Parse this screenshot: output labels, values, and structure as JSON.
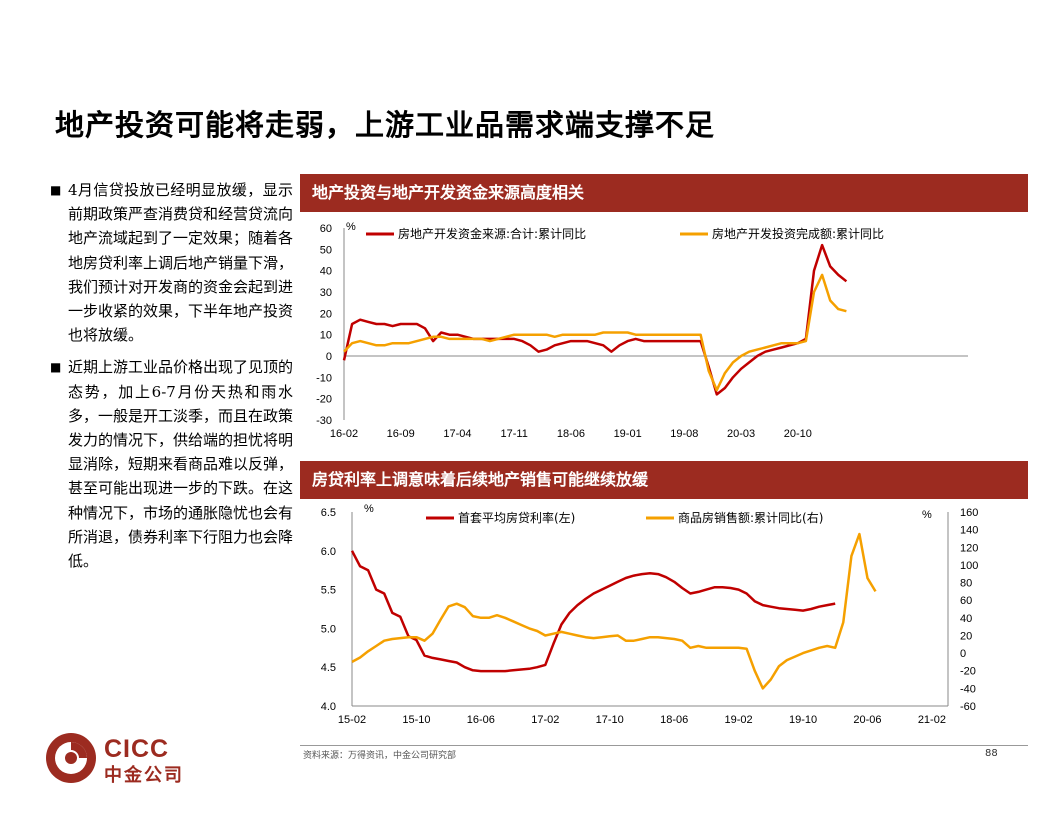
{
  "page": {
    "title": "地产投资可能将走弱，上游工业品需求端支撑不足",
    "bullets": [
      "4月信贷投放已经明显放缓，显示前期政策严查消费贷和经营贷流向地产流域起到了一定效果；随着各地房贷利率上调后地产销量下滑，我们预计对开发商的资金会起到进一步收紧的效果，下半年地产投资也将放缓。",
      "近期上游工业品价格出现了见顶的态势，加上6-7月份天热和雨水多，一般是开工淡季，而且在政策发力的情况下，供给端的担忧将明显消除，短期来看商品难以反弹，甚至可能出现进一步的下跌。在这种情况下，市场的通胀隐忧也会有所消退，债券利率下行阻力也会降低。"
    ],
    "bullet_mark": "■",
    "source": "资料来源：万得资讯，中金公司研究部",
    "page_number": "88",
    "logo": {
      "en": "CICC",
      "cn": "中金公司"
    },
    "colors": {
      "brand": "#9c2b20",
      "series_red": "#c00000",
      "series_orange": "#f5a000"
    }
  },
  "chart_data": [
    {
      "type": "line",
      "title": "地产投资与地产开发资金来源高度相关",
      "ylabel": "%",
      "ylim": [
        -30,
        60
      ],
      "yticks": [
        60,
        50,
        40,
        30,
        20,
        10,
        0,
        -10,
        -20,
        -30
      ],
      "xlim": [
        0,
        77
      ],
      "xticks": [
        {
          "x": 0,
          "label": "16-02"
        },
        {
          "x": 7,
          "label": "16-09"
        },
        {
          "x": 14,
          "label": "17-04"
        },
        {
          "x": 21,
          "label": "17-11"
        },
        {
          "x": 28,
          "label": "18-06"
        },
        {
          "x": 35,
          "label": "19-01"
        },
        {
          "x": 42,
          "label": "19-08"
        },
        {
          "x": 49,
          "label": "20-03"
        },
        {
          "x": 56,
          "label": "20-10"
        }
      ],
      "series": [
        {
          "name": "房地产开发资金来源:合计:累计同比",
          "color": "#c00000",
          "points": [
            [
              0,
              -2
            ],
            [
              1,
              15
            ],
            [
              2,
              17
            ],
            [
              3,
              16
            ],
            [
              4,
              15
            ],
            [
              5,
              15
            ],
            [
              6,
              14
            ],
            [
              7,
              15
            ],
            [
              8,
              15
            ],
            [
              9,
              15
            ],
            [
              10,
              13
            ],
            [
              11,
              7
            ],
            [
              12,
              11
            ],
            [
              13,
              10
            ],
            [
              14,
              10
            ],
            [
              15,
              9
            ],
            [
              16,
              8
            ],
            [
              17,
              8
            ],
            [
              18,
              8
            ],
            [
              19,
              8
            ],
            [
              20,
              8
            ],
            [
              21,
              8
            ],
            [
              22,
              7
            ],
            [
              23,
              5
            ],
            [
              24,
              2
            ],
            [
              25,
              3
            ],
            [
              26,
              5
            ],
            [
              27,
              6
            ],
            [
              28,
              7
            ],
            [
              29,
              7
            ],
            [
              30,
              7
            ],
            [
              31,
              6
            ],
            [
              32,
              5
            ],
            [
              33,
              2
            ],
            [
              34,
              5
            ],
            [
              35,
              7
            ],
            [
              36,
              8
            ],
            [
              37,
              7
            ],
            [
              38,
              7
            ],
            [
              39,
              7
            ],
            [
              40,
              7
            ],
            [
              41,
              7
            ],
            [
              42,
              7
            ],
            [
              43,
              7
            ],
            [
              44,
              7
            ],
            [
              45,
              -5
            ],
            [
              46,
              -18
            ],
            [
              47,
              -15
            ],
            [
              48,
              -10
            ],
            [
              49,
              -6
            ],
            [
              50,
              -3
            ],
            [
              51,
              0
            ],
            [
              52,
              2
            ],
            [
              53,
              3
            ],
            [
              54,
              4
            ],
            [
              55,
              5
            ],
            [
              56,
              6
            ],
            [
              57,
              8
            ],
            [
              58,
              40
            ],
            [
              59,
              52
            ],
            [
              60,
              42
            ],
            [
              61,
              38
            ],
            [
              62,
              35
            ]
          ]
        },
        {
          "name": "房地产开发投资完成额:累计同比",
          "color": "#f5a000",
          "points": [
            [
              0,
              2
            ],
            [
              1,
              6
            ],
            [
              2,
              7
            ],
            [
              3,
              6
            ],
            [
              4,
              5
            ],
            [
              5,
              5
            ],
            [
              6,
              6
            ],
            [
              7,
              6
            ],
            [
              8,
              6
            ],
            [
              9,
              7
            ],
            [
              10,
              8
            ],
            [
              11,
              9
            ],
            [
              12,
              9
            ],
            [
              13,
              8
            ],
            [
              14,
              8
            ],
            [
              15,
              8
            ],
            [
              16,
              8
            ],
            [
              17,
              8
            ],
            [
              18,
              7
            ],
            [
              19,
              8
            ],
            [
              20,
              9
            ],
            [
              21,
              10
            ],
            [
              22,
              10
            ],
            [
              23,
              10
            ],
            [
              24,
              10
            ],
            [
              25,
              10
            ],
            [
              26,
              9
            ],
            [
              27,
              10
            ],
            [
              28,
              10
            ],
            [
              29,
              10
            ],
            [
              30,
              10
            ],
            [
              31,
              10
            ],
            [
              32,
              11
            ],
            [
              33,
              11
            ],
            [
              34,
              11
            ],
            [
              35,
              11
            ],
            [
              36,
              10
            ],
            [
              37,
              10
            ],
            [
              38,
              10
            ],
            [
              39,
              10
            ],
            [
              40,
              10
            ],
            [
              41,
              10
            ],
            [
              42,
              10
            ],
            [
              43,
              10
            ],
            [
              44,
              10
            ],
            [
              45,
              -7
            ],
            [
              46,
              -16
            ],
            [
              47,
              -8
            ],
            [
              48,
              -3
            ],
            [
              49,
              0
            ],
            [
              50,
              2
            ],
            [
              51,
              3
            ],
            [
              52,
              4
            ],
            [
              53,
              5
            ],
            [
              54,
              6
            ],
            [
              55,
              6
            ],
            [
              56,
              6
            ],
            [
              57,
              7
            ],
            [
              58,
              30
            ],
            [
              59,
              38
            ],
            [
              60,
              26
            ],
            [
              61,
              22
            ],
            [
              62,
              21
            ]
          ]
        }
      ]
    },
    {
      "type": "line",
      "title": "房贷利率上调意味着后续地产销售可能继续放缓",
      "ylabel_left": "%",
      "ylabel_right": "%",
      "ylim_left": [
        4.0,
        6.5
      ],
      "ylim_right": [
        -60,
        160
      ],
      "yticks_left": [
        6.5,
        6.0,
        5.5,
        5.0,
        4.5,
        4.0
      ],
      "yticks_right": [
        160,
        140,
        120,
        100,
        80,
        60,
        40,
        20,
        0,
        -20,
        -40,
        -60
      ],
      "xlim": [
        0,
        74
      ],
      "xticks": [
        {
          "x": 0,
          "label": "15-02"
        },
        {
          "x": 8,
          "label": "15-10"
        },
        {
          "x": 16,
          "label": "16-06"
        },
        {
          "x": 24,
          "label": "17-02"
        },
        {
          "x": 32,
          "label": "17-10"
        },
        {
          "x": 40,
          "label": "18-06"
        },
        {
          "x": 48,
          "label": "19-02"
        },
        {
          "x": 56,
          "label": "19-10"
        },
        {
          "x": 64,
          "label": "20-06"
        },
        {
          "x": 72,
          "label": "21-02"
        }
      ],
      "series": [
        {
          "name": "首套平均房贷利率(左)",
          "axis": "left",
          "color": "#c00000",
          "points": [
            [
              0,
              6.0
            ],
            [
              1,
              5.8
            ],
            [
              2,
              5.75
            ],
            [
              3,
              5.5
            ],
            [
              4,
              5.45
            ],
            [
              5,
              5.2
            ],
            [
              6,
              5.15
            ],
            [
              7,
              4.9
            ],
            [
              8,
              4.85
            ],
            [
              9,
              4.65
            ],
            [
              10,
              4.62
            ],
            [
              11,
              4.6
            ],
            [
              12,
              4.58
            ],
            [
              13,
              4.56
            ],
            [
              14,
              4.5
            ],
            [
              15,
              4.46
            ],
            [
              16,
              4.45
            ],
            [
              17,
              4.45
            ],
            [
              18,
              4.45
            ],
            [
              19,
              4.45
            ],
            [
              20,
              4.46
            ],
            [
              21,
              4.47
            ],
            [
              22,
              4.48
            ],
            [
              23,
              4.5
            ],
            [
              24,
              4.53
            ],
            [
              25,
              4.8
            ],
            [
              26,
              5.05
            ],
            [
              27,
              5.2
            ],
            [
              28,
              5.3
            ],
            [
              29,
              5.38
            ],
            [
              30,
              5.45
            ],
            [
              31,
              5.5
            ],
            [
              32,
              5.55
            ],
            [
              33,
              5.6
            ],
            [
              34,
              5.65
            ],
            [
              35,
              5.68
            ],
            [
              36,
              5.7
            ],
            [
              37,
              5.71
            ],
            [
              38,
              5.7
            ],
            [
              39,
              5.66
            ],
            [
              40,
              5.6
            ],
            [
              41,
              5.52
            ],
            [
              42,
              5.45
            ],
            [
              43,
              5.47
            ],
            [
              44,
              5.5
            ],
            [
              45,
              5.53
            ],
            [
              46,
              5.53
            ],
            [
              47,
              5.52
            ],
            [
              48,
              5.5
            ],
            [
              49,
              5.45
            ],
            [
              50,
              5.35
            ],
            [
              51,
              5.3
            ],
            [
              52,
              5.28
            ],
            [
              53,
              5.26
            ],
            [
              54,
              5.25
            ],
            [
              55,
              5.24
            ],
            [
              56,
              5.23
            ],
            [
              57,
              5.25
            ],
            [
              58,
              5.28
            ],
            [
              59,
              5.3
            ],
            [
              60,
              5.32
            ]
          ]
        },
        {
          "name": "商品房销售额:累计同比(右)",
          "axis": "right",
          "color": "#f5a000",
          "points": [
            [
              0,
              -10
            ],
            [
              1,
              -5
            ],
            [
              2,
              2
            ],
            [
              3,
              8
            ],
            [
              4,
              14
            ],
            [
              5,
              16
            ],
            [
              6,
              17
            ],
            [
              7,
              18
            ],
            [
              8,
              18
            ],
            [
              9,
              14
            ],
            [
              10,
              22
            ],
            [
              11,
              38
            ],
            [
              12,
              53
            ],
            [
              13,
              56
            ],
            [
              14,
              52
            ],
            [
              15,
              42
            ],
            [
              16,
              40
            ],
            [
              17,
              40
            ],
            [
              18,
              43
            ],
            [
              19,
              40
            ],
            [
              20,
              36
            ],
            [
              21,
              32
            ],
            [
              22,
              28
            ],
            [
              23,
              25
            ],
            [
              24,
              20
            ],
            [
              25,
              22
            ],
            [
              26,
              24
            ],
            [
              27,
              22
            ],
            [
              28,
              20
            ],
            [
              29,
              18
            ],
            [
              30,
              17
            ],
            [
              31,
              18
            ],
            [
              32,
              19
            ],
            [
              33,
              20
            ],
            [
              34,
              14
            ],
            [
              35,
              14
            ],
            [
              36,
              16
            ],
            [
              37,
              18
            ],
            [
              38,
              18
            ],
            [
              39,
              17
            ],
            [
              40,
              16
            ],
            [
              41,
              14
            ],
            [
              42,
              6
            ],
            [
              43,
              8
            ],
            [
              44,
              6
            ],
            [
              45,
              6
            ],
            [
              46,
              6
            ],
            [
              47,
              6
            ],
            [
              48,
              6
            ],
            [
              49,
              5
            ],
            [
              50,
              -20
            ],
            [
              51,
              -40
            ],
            [
              52,
              -30
            ],
            [
              53,
              -15
            ],
            [
              54,
              -8
            ],
            [
              55,
              -4
            ],
            [
              56,
              0
            ],
            [
              57,
              3
            ],
            [
              58,
              6
            ],
            [
              59,
              8
            ],
            [
              60,
              6
            ],
            [
              61,
              35
            ],
            [
              62,
              110
            ],
            [
              63,
              135
            ],
            [
              64,
              85
            ],
            [
              65,
              70
            ]
          ]
        }
      ]
    }
  ]
}
